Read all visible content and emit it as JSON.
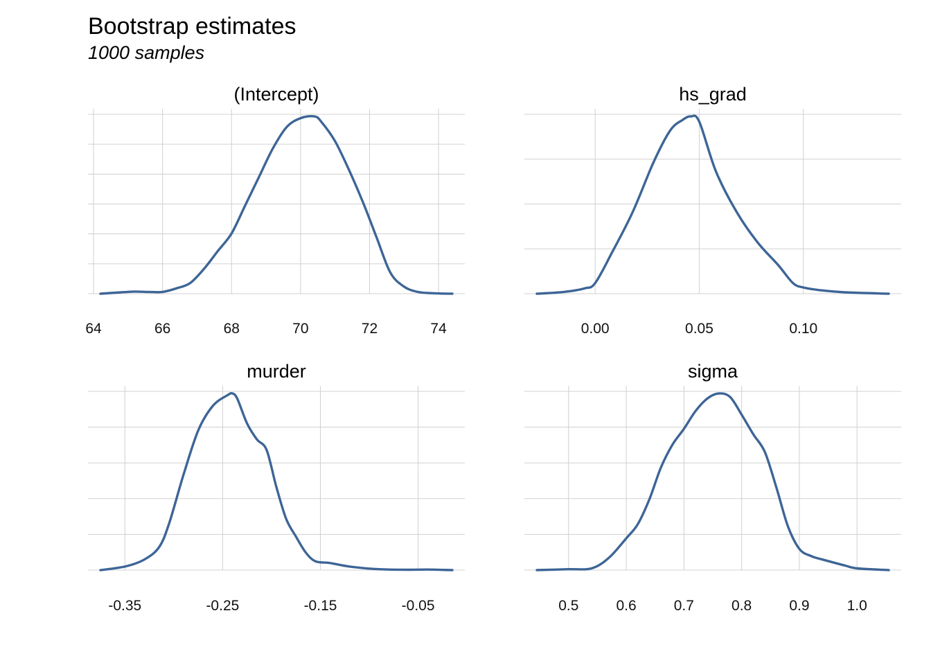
{
  "title": "Bootstrap estimates",
  "subtitle": "1000 samples",
  "style": {
    "line_color": "#3d6596",
    "grid_color": "#d0d0d0"
  },
  "chart_data": [
    {
      "type": "area",
      "facet": "(Intercept)",
      "xlim": [
        64.2,
        74.4
      ],
      "ylim": [
        0,
        1
      ],
      "xticks": [
        64,
        66,
        68,
        70,
        72,
        74
      ],
      "xtick_labels": [
        "64",
        "66",
        "68",
        "70",
        "72",
        "74"
      ],
      "x": [
        64.2,
        64.8,
        65.2,
        65.6,
        66.0,
        66.4,
        66.8,
        67.2,
        67.6,
        68.0,
        68.4,
        68.8,
        69.2,
        69.6,
        70.0,
        70.4,
        70.6,
        71.0,
        71.4,
        71.8,
        72.2,
        72.6,
        73.0,
        73.4,
        73.8,
        74.4
      ],
      "y": [
        0.0,
        0.008,
        0.012,
        0.01,
        0.01,
        0.03,
        0.06,
        0.14,
        0.24,
        0.34,
        0.5,
        0.66,
        0.82,
        0.94,
        0.99,
        1.0,
        0.97,
        0.86,
        0.7,
        0.52,
        0.32,
        0.12,
        0.04,
        0.01,
        0.003,
        0.0
      ]
    },
    {
      "type": "area",
      "facet": "hs_grad",
      "xlim": [
        -0.028,
        0.141
      ],
      "ylim": [
        0,
        1
      ],
      "xticks": [
        0.0,
        0.05,
        0.1
      ],
      "xtick_labels": [
        "0.00",
        "0.05",
        "0.10"
      ],
      "x": [
        -0.028,
        -0.015,
        -0.005,
        0.0,
        0.008,
        0.018,
        0.028,
        0.036,
        0.042,
        0.046,
        0.05,
        0.058,
        0.068,
        0.078,
        0.088,
        0.095,
        0.1,
        0.108,
        0.12,
        0.141
      ],
      "y": [
        0.0,
        0.01,
        0.03,
        0.06,
        0.23,
        0.46,
        0.74,
        0.92,
        0.98,
        1.0,
        0.97,
        0.69,
        0.46,
        0.29,
        0.16,
        0.06,
        0.035,
        0.02,
        0.008,
        0.0
      ]
    },
    {
      "type": "area",
      "facet": "murder",
      "xlim": [
        -0.375,
        -0.015
      ],
      "ylim": [
        0,
        1
      ],
      "xticks": [
        -0.35,
        -0.25,
        -0.15,
        -0.05
      ],
      "xtick_labels": [
        "-0.35",
        "-0.25",
        "-0.15",
        "-0.05"
      ],
      "x": [
        -0.375,
        -0.35,
        -0.33,
        -0.315,
        -0.305,
        -0.29,
        -0.275,
        -0.26,
        -0.245,
        -0.24,
        -0.235,
        -0.225,
        -0.215,
        -0.205,
        -0.195,
        -0.185,
        -0.175,
        -0.165,
        -0.155,
        -0.14,
        -0.12,
        -0.09,
        -0.06,
        -0.04,
        -0.015
      ],
      "y": [
        0.0,
        0.02,
        0.06,
        0.13,
        0.26,
        0.54,
        0.79,
        0.93,
        0.99,
        1.0,
        0.97,
        0.83,
        0.74,
        0.68,
        0.47,
        0.29,
        0.19,
        0.1,
        0.05,
        0.04,
        0.02,
        0.005,
        0.002,
        0.003,
        0.0
      ]
    },
    {
      "type": "area",
      "facet": "sigma",
      "xlim": [
        0.445,
        1.055
      ],
      "ylim": [
        0,
        1
      ],
      "xticks": [
        0.5,
        0.6,
        0.7,
        0.8,
        0.9,
        1.0
      ],
      "xtick_labels": [
        "0.5",
        "0.6",
        "0.7",
        "0.8",
        "0.9",
        "1.0"
      ],
      "x": [
        0.445,
        0.5,
        0.54,
        0.57,
        0.6,
        0.62,
        0.64,
        0.66,
        0.68,
        0.7,
        0.72,
        0.74,
        0.76,
        0.78,
        0.8,
        0.82,
        0.84,
        0.86,
        0.88,
        0.9,
        0.92,
        0.94,
        0.98,
        1.0,
        1.055
      ],
      "y": [
        0.0,
        0.005,
        0.01,
        0.07,
        0.18,
        0.26,
        0.4,
        0.58,
        0.71,
        0.8,
        0.9,
        0.97,
        1.0,
        0.98,
        0.88,
        0.77,
        0.67,
        0.47,
        0.25,
        0.12,
        0.08,
        0.06,
        0.025,
        0.01,
        0.0
      ]
    }
  ]
}
